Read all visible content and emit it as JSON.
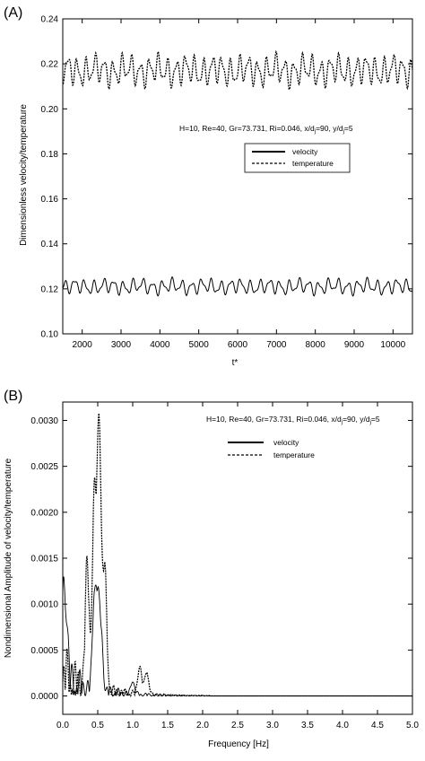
{
  "chart_data": [
    {
      "type": "line",
      "panel_label": "(A)",
      "xlabel": "t*",
      "ylabel": "Dimensionless velocity/temperature",
      "annotation": "H=10, Re=40, Gr=73.731, Ri=0.046, x/d",
      "annotation_tail": "=90, y/d",
      "annotation_end": "=5",
      "xlim": [
        1500,
        10500
      ],
      "ylim": [
        0.1,
        0.24
      ],
      "xticks": [
        "2000",
        "3000",
        "4000",
        "5000",
        "6000",
        "7000",
        "8000",
        "9000",
        "10000"
      ],
      "yticks": [
        "0.10",
        "0.12",
        "0.14",
        "0.16",
        "0.18",
        "0.20",
        "0.22",
        "0.24"
      ],
      "legend": "center-right",
      "series": [
        {
          "name": "velocity",
          "style": "solid",
          "mean": 0.121,
          "amplitude": 0.004,
          "x": [
            1500,
            10500
          ],
          "samples_note": "oscillating about 0.12"
        },
        {
          "name": "temperature",
          "style": "dashed",
          "mean": 0.217,
          "amplitude": 0.008,
          "x": [
            1500,
            10500
          ],
          "samples_note": "oscillating about 0.217"
        }
      ]
    },
    {
      "type": "line",
      "panel_label": "(B)",
      "xlabel": "Frequency [Hz]",
      "ylabel": "Nondimensional Amplitude of velocity/temperature",
      "annotation": "H=10, Re=40, Gr=73.731, Ri=0.046, x/d",
      "annotation_tail": "=90, y/d",
      "annotation_end": "=5",
      "xlim": [
        0.0,
        5.0
      ],
      "ylim": [
        -0.0002,
        0.0032
      ],
      "xticks": [
        "0.0",
        "0.5",
        "1.0",
        "1.5",
        "2.0",
        "2.5",
        "3.0",
        "3.5",
        "4.0",
        "4.5",
        "5.0"
      ],
      "yticks": [
        "0.0000",
        "0.0005",
        "0.0010",
        "0.0015",
        "0.0020",
        "0.0025",
        "0.0030"
      ],
      "legend": "top-right",
      "series": [
        {
          "name": "velocity",
          "style": "solid",
          "peaks": [
            [
              0.0,
              0.0009
            ],
            [
              0.05,
              0.0007
            ],
            [
              0.45,
              0.001
            ],
            [
              0.5,
              0.0009
            ],
            [
              0.55,
              0.0006
            ],
            [
              1.0,
              0.00015
            ]
          ]
        },
        {
          "name": "temperature",
          "style": "dashed",
          "peaks": [
            [
              0.35,
              0.0013
            ],
            [
              0.45,
              0.002
            ],
            [
              0.52,
              0.0029
            ],
            [
              0.6,
              0.0013
            ],
            [
              1.1,
              0.0003
            ],
            [
              1.2,
              0.00025
            ]
          ]
        }
      ]
    }
  ]
}
